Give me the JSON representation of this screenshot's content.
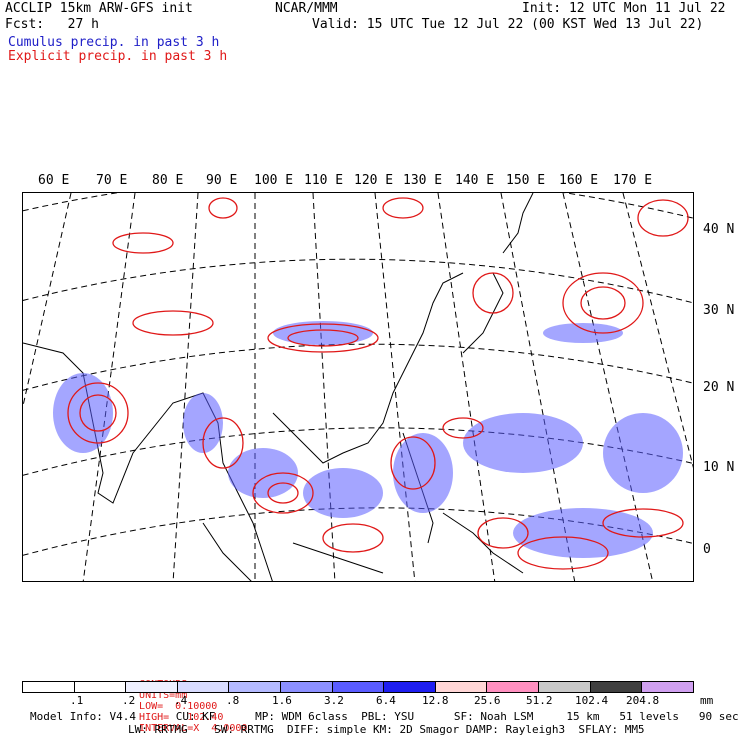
{
  "header": {
    "left_line1": "ACCLIP 15km ARW-GFS init",
    "left_line2": "Fcst:   27 h",
    "center": "NCAR/MMM",
    "right_line1": "Init: 12 UTC Mon 11 Jul 22",
    "right_line2": "Valid: 15 UTC Tue 12 Jul 22 (00 KST Wed 13 Jul 22)",
    "legend_blue": "Cumulus precip. in past 3 h",
    "legend_red": "Explicit precip. in past 3 h"
  },
  "map": {
    "lon_labels": [
      "60 E",
      "70 E",
      "80 E",
      "90 E",
      "100 E",
      "110 E",
      "120 E",
      "130 E",
      "140 E",
      "150 E",
      "160 E",
      "170 E"
    ],
    "lat_labels": [
      "40 N",
      "30 N",
      "20 N",
      "10 N",
      "0"
    ]
  },
  "contours": {
    "label": "CONTOURS:",
    "units": "UNITS=mm",
    "low": "LOW=  0.10000",
    "high": "HIGH=   102.40",
    "interval": "INTERVAL=X  4.0000"
  },
  "colorbar": {
    "tick_labels": [
      ".1",
      ".2",
      ".4",
      ".8",
      "1.6",
      "3.2",
      "6.4",
      "12.8",
      "25.6",
      "51.2",
      "102.4",
      "204.8"
    ],
    "unit": "mm",
    "colors": [
      "#ffffff",
      "#ffffff",
      "#eef0ff",
      "#d8dcff",
      "#b4baff",
      "#8c90ff",
      "#5a5cff",
      "#1e1ef0",
      "#ffd6d6",
      "#ff90c0",
      "#c8c8c8",
      "#404040",
      "#d0a0f0"
    ]
  },
  "footer": {
    "line1": "Model Info: V4.4      CU: KF      MP: WDM 6class  PBL: YSU      SF: Noah LSM     15 km   51 levels   90 sec",
    "line2": "LW: RRTMG    SW: RRTMG  DIFF: simple KM: 2D Smagor DAMP: Rayleigh3  SFLAY: MM5"
  }
}
